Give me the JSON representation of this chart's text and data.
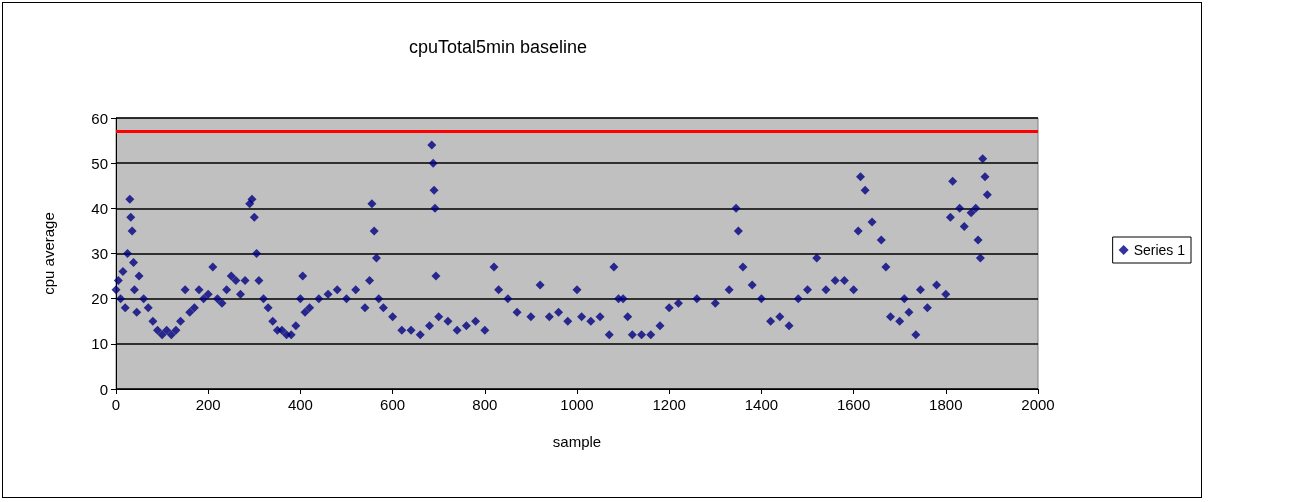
{
  "chart_data": {
    "type": "scatter",
    "title": "cpuTotal5min baseline",
    "xlabel": "sample",
    "ylabel": "cpu average",
    "xlim": [
      0,
      2000
    ],
    "xticks": [
      0,
      200,
      400,
      600,
      800,
      1000,
      1200,
      1400,
      1600,
      1800,
      2000
    ],
    "ylim": [
      0,
      60
    ],
    "yticks": [
      0,
      10,
      20,
      30,
      40,
      50,
      60
    ],
    "grid": "y",
    "legend": "right",
    "marker": "diamond",
    "ref_lines": [
      {
        "axis": "y",
        "value": 57,
        "label": null,
        "color": "#ff0000"
      }
    ],
    "series": [
      {
        "name": "Series 1",
        "color": "#000080",
        "x": [
          0,
          5,
          10,
          15,
          20,
          25,
          30,
          32,
          35,
          38,
          40,
          45,
          50,
          60,
          70,
          80,
          90,
          100,
          110,
          120,
          130,
          140,
          150,
          160,
          170,
          180,
          190,
          200,
          210,
          220,
          230,
          240,
          250,
          260,
          270,
          280,
          290,
          295,
          300,
          305,
          310,
          320,
          330,
          340,
          350,
          360,
          370,
          380,
          390,
          400,
          405,
          410,
          420,
          440,
          460,
          480,
          500,
          520,
          540,
          550,
          555,
          560,
          565,
          570,
          580,
          600,
          620,
          640,
          660,
          680,
          685,
          688,
          690,
          692,
          694,
          700,
          720,
          740,
          760,
          780,
          800,
          820,
          830,
          850,
          870,
          900,
          920,
          940,
          960,
          980,
          1000,
          1010,
          1030,
          1050,
          1070,
          1080,
          1090,
          1100,
          1110,
          1120,
          1140,
          1160,
          1180,
          1200,
          1220,
          1260,
          1300,
          1330,
          1345,
          1350,
          1360,
          1380,
          1400,
          1420,
          1440,
          1460,
          1480,
          1500,
          1520,
          1540,
          1560,
          1580,
          1600,
          1610,
          1615,
          1625,
          1640,
          1660,
          1670,
          1680,
          1700,
          1710,
          1720,
          1735,
          1745,
          1760,
          1780,
          1800,
          1810,
          1815,
          1830,
          1840,
          1855,
          1865,
          1870,
          1875,
          1880,
          1885,
          1890
        ],
        "values": [
          22,
          24,
          20,
          26,
          18,
          30,
          42,
          38,
          35,
          28,
          22,
          17,
          25,
          20,
          18,
          15,
          13,
          12,
          13,
          12,
          13,
          15,
          22,
          17,
          18,
          22,
          20,
          21,
          27,
          20,
          19,
          22,
          25,
          24,
          21,
          24,
          41,
          42,
          38,
          30,
          24,
          20,
          18,
          15,
          13,
          13,
          12,
          12,
          14,
          20,
          25,
          17,
          18,
          20,
          21,
          22,
          20,
          22,
          18,
          24,
          41,
          35,
          29,
          20,
          18,
          16,
          13,
          13,
          12,
          14,
          54,
          50,
          44,
          40,
          25,
          16,
          15,
          13,
          14,
          15,
          13,
          27,
          22,
          20,
          17,
          16,
          23,
          16,
          17,
          15,
          22,
          16,
          15,
          16,
          12,
          27,
          20,
          20,
          16,
          12,
          12,
          12,
          14,
          18,
          19,
          20,
          19,
          22,
          40,
          35,
          27,
          23,
          20,
          15,
          16,
          14,
          20,
          22,
          29,
          22,
          24,
          24,
          22,
          35,
          47,
          44,
          37,
          33,
          27,
          16,
          15,
          20,
          17,
          12,
          22,
          18,
          23,
          21,
          38,
          46,
          40,
          36,
          39,
          40,
          33,
          29,
          51,
          47,
          43
        ]
      }
    ]
  }
}
